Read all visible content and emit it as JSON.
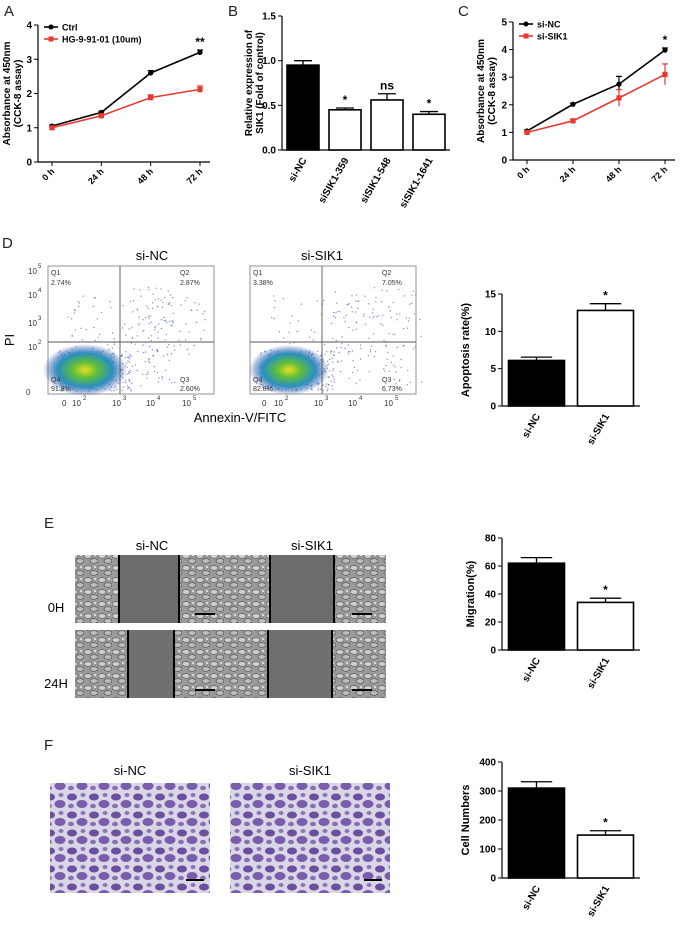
{
  "panels": {
    "A": "A",
    "B": "B",
    "C": "C",
    "D": "D",
    "E": "E",
    "F": "F"
  },
  "chart_data": [
    {
      "id": "A",
      "type": "line",
      "ylabel": "Absorbance at 450nm (CCK-8 assay)",
      "ylabel_line1": "Absorbance at 450nm",
      "ylabel_line2": "(CCK-8 assay)",
      "categories": [
        "0 h",
        "24 h",
        "48 h",
        "72 h"
      ],
      "ylim": [
        0,
        4
      ],
      "yticks": [
        "0",
        "1",
        "2",
        "3",
        "4"
      ],
      "series": [
        {
          "name": "Ctrl",
          "color": "#000000",
          "values": [
            1.05,
            1.45,
            2.6,
            3.2
          ],
          "errors": [
            0.03,
            0.03,
            0.07,
            0.07
          ]
        },
        {
          "name": "HG-9-91-01 (10um)",
          "color": "#e8392f",
          "values": [
            1.0,
            1.35,
            1.88,
            2.12
          ],
          "errors": [
            0.03,
            0.03,
            0.08,
            0.1
          ]
        }
      ],
      "legend": "top-left",
      "annotations": [
        {
          "text": "**",
          "x": "72 h"
        }
      ]
    },
    {
      "id": "B",
      "type": "bar",
      "ylabel_line1": "Relative expression of",
      "ylabel_line2": "SIK1 (Fold of control)",
      "categories": [
        "si-NC",
        "siSIK1-359",
        "siSIK1-548",
        "siSIK1-1641"
      ],
      "values": [
        0.95,
        0.45,
        0.56,
        0.4
      ],
      "errors": [
        0.05,
        0.02,
        0.07,
        0.03
      ],
      "fills": [
        "#000000",
        "#ffffff",
        "#ffffff",
        "#ffffff"
      ],
      "annotations": [
        "",
        "*",
        "ns",
        "*"
      ],
      "ylim": [
        0,
        1.5
      ],
      "yticks": [
        "0.0",
        "0.5",
        "1.0",
        "1.5"
      ]
    },
    {
      "id": "C",
      "type": "line",
      "ylabel_line1": "Absorbance at 450nm",
      "ylabel_line2": "(CCK-8 assay)",
      "categories": [
        "0 h",
        "24 h",
        "48 h",
        "72 h"
      ],
      "ylim": [
        0,
        5
      ],
      "yticks": [
        "0",
        "1",
        "2",
        "3",
        "4",
        "5"
      ],
      "series": [
        {
          "name": "si-NC",
          "color": "#000000",
          "values": [
            1.05,
            2.02,
            2.75,
            3.98
          ],
          "errors": [
            0.04,
            0.04,
            0.28,
            0.08
          ]
        },
        {
          "name": "si-SIK1",
          "color": "#e8392f",
          "values": [
            1.0,
            1.42,
            2.25,
            3.1
          ],
          "errors": [
            0.04,
            0.05,
            0.3,
            0.38
          ]
        }
      ],
      "legend": "top-left",
      "annotations": [
        {
          "text": "*",
          "x": "72 h"
        }
      ]
    },
    {
      "id": "D",
      "type": "bar",
      "ylabel": "Apoptosis rate(%)",
      "categories": [
        "si-NC",
        "si-SIK1"
      ],
      "values": [
        6.1,
        12.8
      ],
      "errors": [
        0.45,
        0.9
      ],
      "fills": [
        "#000000",
        "#ffffff"
      ],
      "annotations": [
        "",
        "*"
      ],
      "ylim": [
        0,
        15
      ],
      "yticks": [
        "0",
        "5",
        "10",
        "15"
      ]
    },
    {
      "id": "E",
      "type": "bar",
      "ylabel": "Migration(%)",
      "categories": [
        "si-NC",
        "si-SIK1"
      ],
      "values": [
        62,
        34
      ],
      "errors": [
        4,
        3
      ],
      "fills": [
        "#000000",
        "#ffffff"
      ],
      "annotations": [
        "",
        "*"
      ],
      "ylim": [
        0,
        80
      ],
      "yticks": [
        "0",
        "20",
        "40",
        "60",
        "80"
      ]
    },
    {
      "id": "F",
      "type": "bar",
      "ylabel": "Cell Numbers",
      "categories": [
        "si-NC",
        "si-SIK1"
      ],
      "values": [
        310,
        148
      ],
      "errors": [
        22,
        15
      ],
      "fills": [
        "#000000",
        "#ffffff"
      ],
      "annotations": [
        "",
        "*"
      ],
      "ylim": [
        0,
        400
      ],
      "yticks": [
        "0",
        "100",
        "200",
        "300",
        "400"
      ]
    }
  ],
  "flow": {
    "titles": [
      "si-NC",
      "si-SIK1"
    ],
    "ylabel": "PI",
    "xlabel": "Annexin-V/FITC",
    "log_ticks": [
      "0",
      "10",
      "2",
      "10",
      "3",
      "10",
      "4",
      "10",
      "5"
    ],
    "plots": [
      {
        "q1": "Q1",
        "q2": "Q2",
        "q3": "Q3",
        "q4": "Q4",
        "q1v": "2.74%",
        "q2v": "2.87%",
        "q3v": "2.60%",
        "q4v": "91.8%"
      },
      {
        "q1": "Q1",
        "q2": "Q2",
        "q3": "Q3",
        "q4": "Q4",
        "q1v": "3.38%",
        "q2v": "7.05%",
        "q3v": "6.73%",
        "q4v": "82.8%"
      }
    ]
  },
  "wound": {
    "cols": [
      "si-NC",
      "si-SIK1"
    ],
    "rows": [
      "0H",
      "24H"
    ]
  },
  "transwell": {
    "cols": [
      "si-NC",
      "si-SIK1"
    ]
  }
}
